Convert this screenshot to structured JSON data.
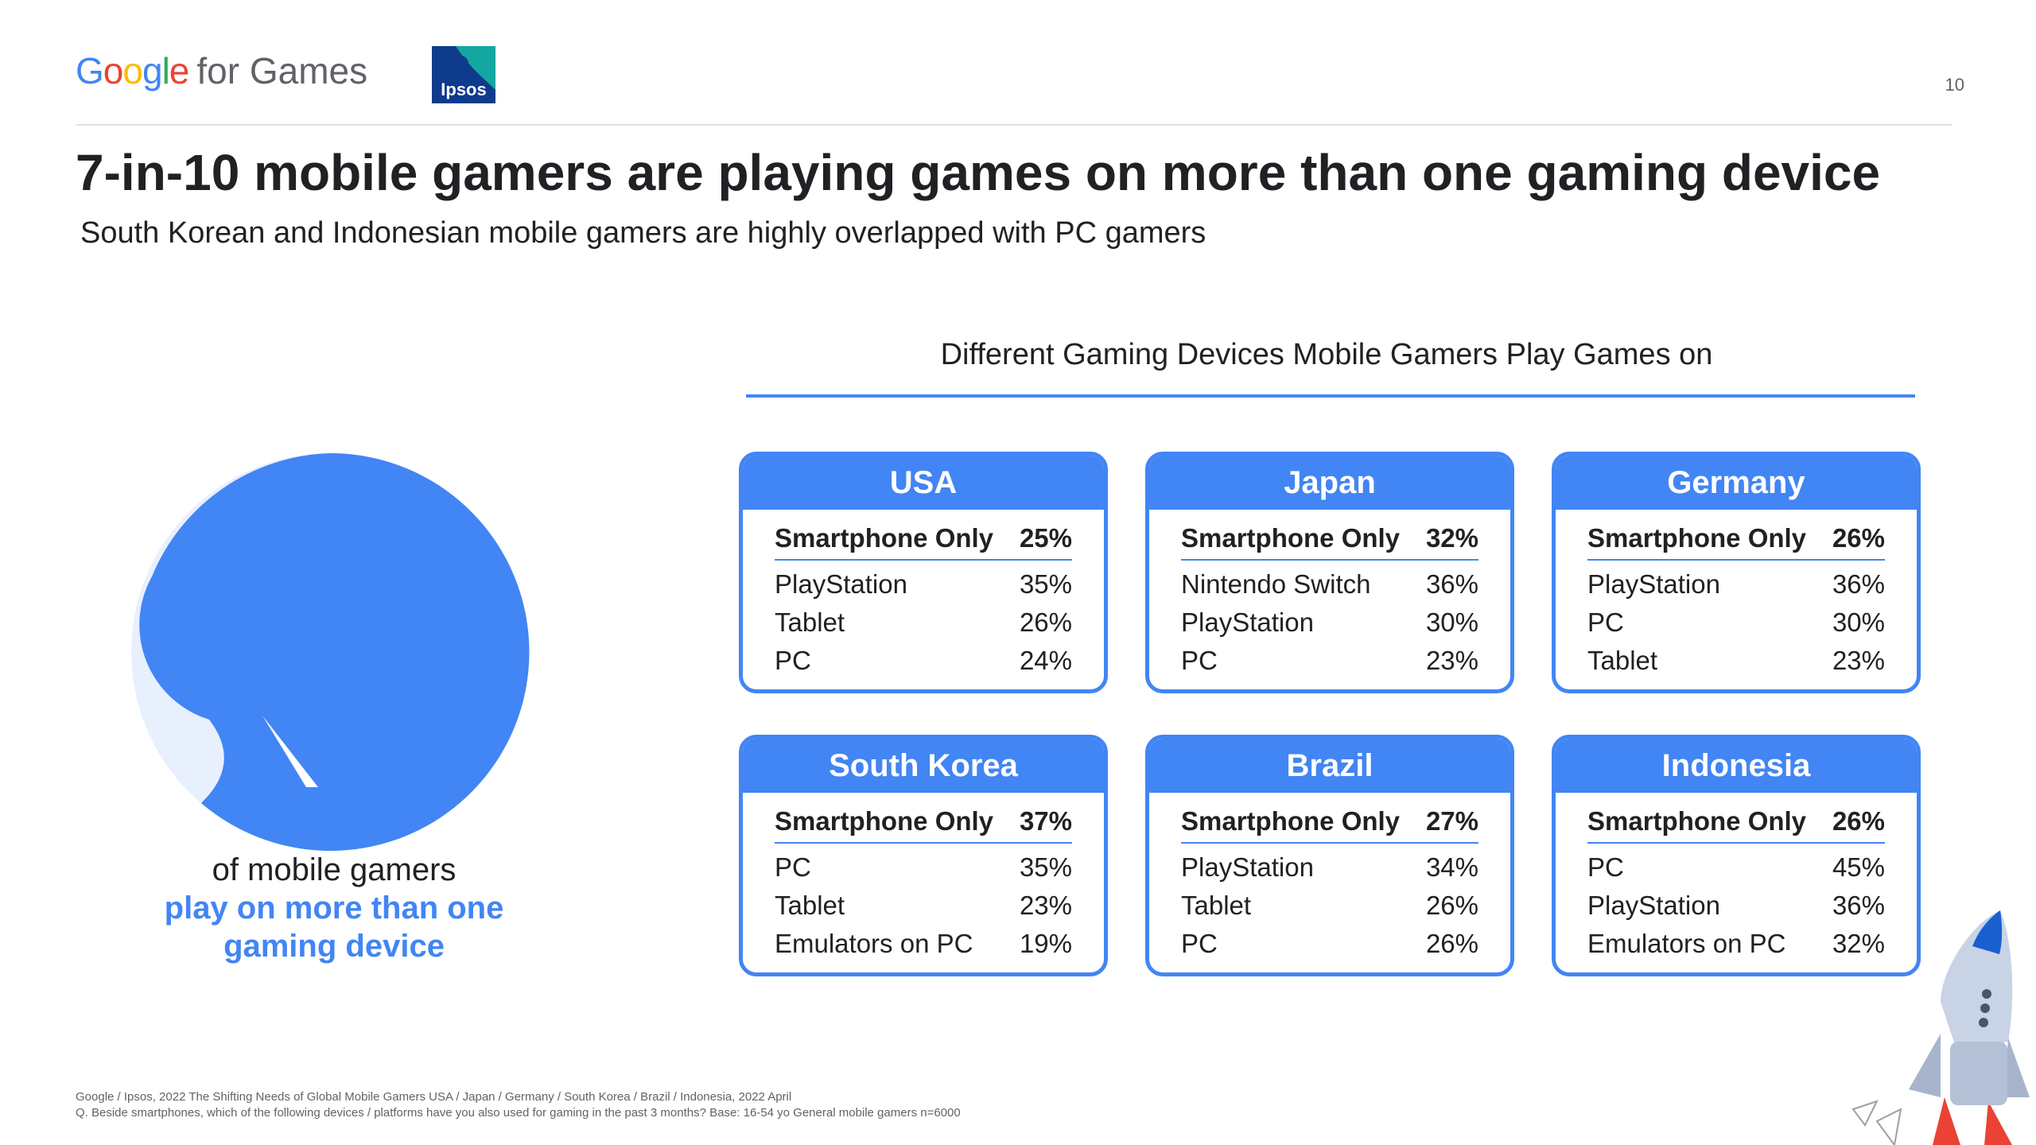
{
  "header": {
    "brand": "Google",
    "brand_suffix": "for Games",
    "partner_logo": "Ipsos",
    "page_number": "10"
  },
  "title": "7-in-10 mobile gamers are playing games on more than one gaming device",
  "subtitle": "South Korean and Indonesian mobile gamers are highly overlapped with PC gamers",
  "donut": {
    "label_line1": "of mobile gamers",
    "label_line2": "play on more than one gaming device",
    "colors": {
      "primary": "#4285F4",
      "secondary": "#E8F0FE"
    }
  },
  "chart_data": {
    "type": "table",
    "title": "Different Gaming Devices Mobile Gamers Play Games on",
    "countries": [
      {
        "name": "USA",
        "rows": [
          {
            "label": "Smartphone Only",
            "value": "25%"
          },
          {
            "label": "PlayStation",
            "value": "35%"
          },
          {
            "label": "Tablet",
            "value": "26%"
          },
          {
            "label": "PC",
            "value": "24%"
          }
        ]
      },
      {
        "name": "Japan",
        "rows": [
          {
            "label": "Smartphone Only",
            "value": "32%"
          },
          {
            "label": "Nintendo Switch",
            "value": "36%"
          },
          {
            "label": "PlayStation",
            "value": "30%"
          },
          {
            "label": "PC",
            "value": "23%"
          }
        ]
      },
      {
        "name": "Germany",
        "rows": [
          {
            "label": "Smartphone Only",
            "value": "26%"
          },
          {
            "label": "PlayStation",
            "value": "36%"
          },
          {
            "label": "PC",
            "value": "30%"
          },
          {
            "label": "Tablet",
            "value": "23%"
          }
        ]
      },
      {
        "name": "South Korea",
        "rows": [
          {
            "label": "Smartphone Only",
            "value": "37%"
          },
          {
            "label": "PC",
            "value": "35%"
          },
          {
            "label": "Tablet",
            "value": "23%"
          },
          {
            "label": "Emulators on PC",
            "value": "19%"
          }
        ]
      },
      {
        "name": "Brazil",
        "rows": [
          {
            "label": "Smartphone Only",
            "value": "27%"
          },
          {
            "label": "PlayStation",
            "value": "34%"
          },
          {
            "label": "Tablet",
            "value": "26%"
          },
          {
            "label": "PC",
            "value": "26%"
          }
        ]
      },
      {
        "name": "Indonesia",
        "rows": [
          {
            "label": "Smartphone Only",
            "value": "26%"
          },
          {
            "label": "PC",
            "value": "45%"
          },
          {
            "label": "PlayStation",
            "value": "36%"
          },
          {
            "label": "Emulators on PC",
            "value": "32%"
          }
        ]
      }
    ]
  },
  "footnote": {
    "line1": "Google / Ipsos, 2022 The Shifting Needs of Global Mobile Gamers USA / Japan / Germany / South Korea / Brazil / Indonesia, 2022 April",
    "line2": "Q. Beside smartphones, which of the following devices / platforms have you also used for gaming in the past 3 months? Base: 16-54 yo General mobile gamers n=6000"
  },
  "decoration": {
    "rocket_icon": "rocket-icon"
  }
}
